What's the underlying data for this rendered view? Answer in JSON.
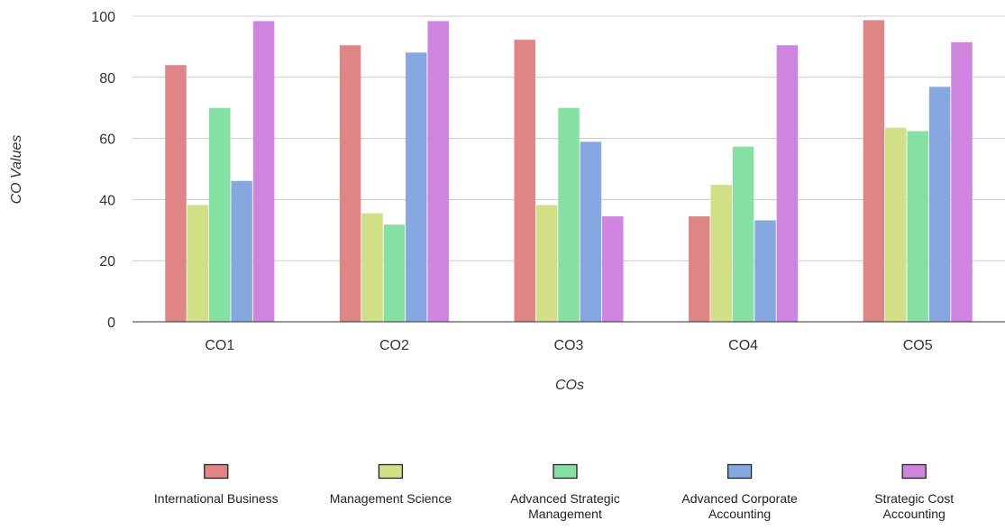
{
  "chart_data": {
    "type": "bar",
    "categories": [
      "CO1",
      "CO2",
      "CO3",
      "CO4",
      "CO5"
    ],
    "series": [
      {
        "name": "International Business",
        "color": "#e08585",
        "values": [
          84,
          90.5,
          92.3,
          34.5,
          98.7
        ]
      },
      {
        "name": "Management Science",
        "color": "#d1e085",
        "values": [
          38.2,
          35.5,
          38.2,
          44.8,
          63.5
        ]
      },
      {
        "name": "Advanced Strategic Management",
        "color": "#85e0a3",
        "values": [
          70,
          31.8,
          70,
          57.3,
          62.4
        ]
      },
      {
        "name": "Advanced Corporate Accounting",
        "color": "#85a8e0",
        "values": [
          46.1,
          88.1,
          58.9,
          33.2,
          76.9
        ]
      },
      {
        "name": "Strategic Cost Accounting",
        "color": "#cf85e0",
        "values": [
          98.4,
          98.4,
          34.5,
          90.5,
          91.5
        ]
      }
    ],
    "xlabel": "COs",
    "ylabel": "CO Values",
    "ylim": [
      0,
      100
    ],
    "yticks": [
      0,
      20,
      40,
      60,
      80,
      100
    ],
    "grid": true,
    "legend_position": "bottom"
  }
}
